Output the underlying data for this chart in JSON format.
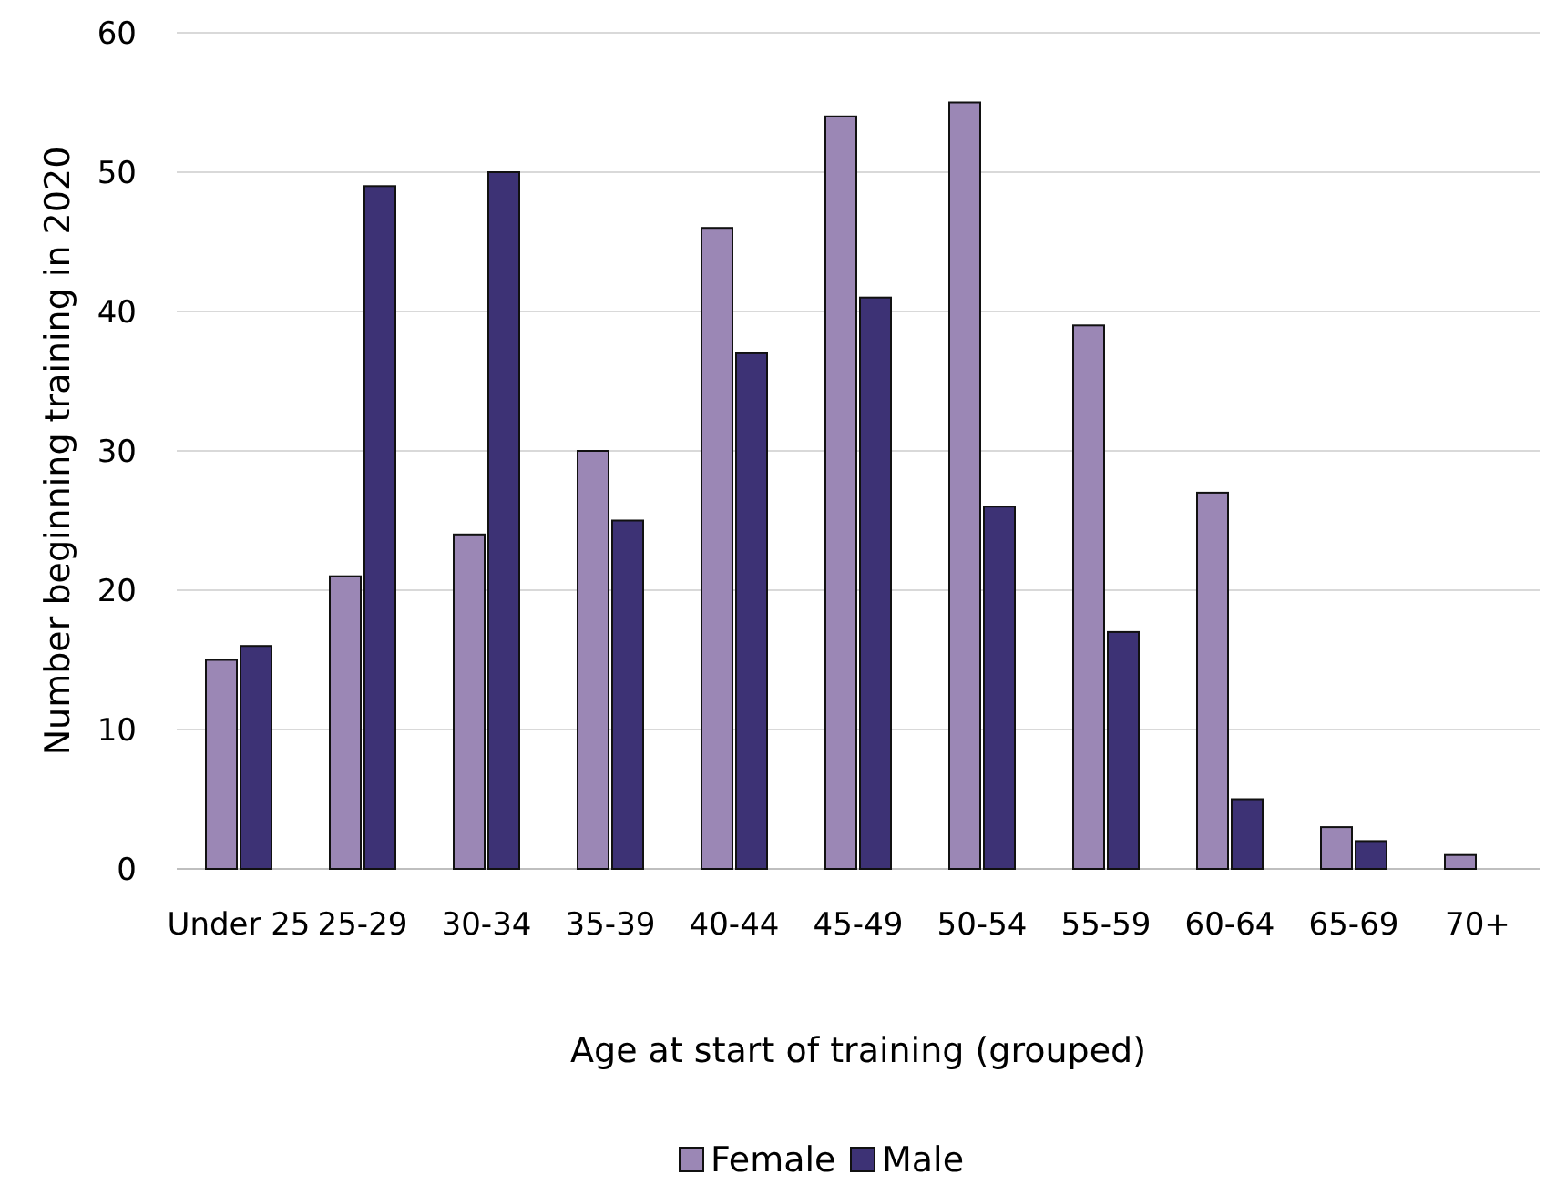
{
  "chart_data": {
    "type": "bar",
    "xlabel": "Age at start of training (grouped)",
    "ylabel": "Number beginning training in 2020",
    "categories": [
      "Under 25",
      "25-29",
      "30-34",
      "35-39",
      "40-44",
      "45-49",
      "50-54",
      "55-59",
      "60-64",
      "65-69",
      "70+"
    ],
    "series": [
      {
        "name": "Female",
        "color": "#9b87b5",
        "values": [
          15,
          21,
          24,
          30,
          46,
          54,
          55,
          39,
          27,
          3,
          1
        ]
      },
      {
        "name": "Male",
        "color": "#3d3275",
        "values": [
          16,
          49,
          50,
          25,
          37,
          41,
          26,
          17,
          5,
          2,
          0
        ]
      }
    ],
    "ylim": [
      0,
      60
    ],
    "yticks": [
      0,
      10,
      20,
      30,
      40,
      50,
      60
    ],
    "grid": "y",
    "legend": "bottom"
  }
}
